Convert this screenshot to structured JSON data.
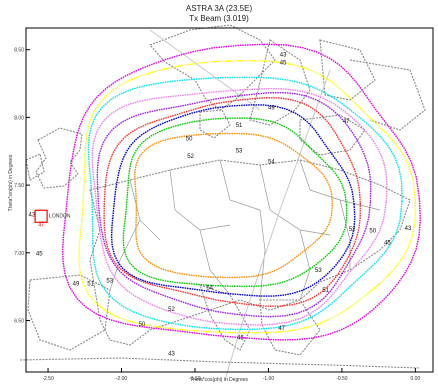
{
  "title": "ASTRA 3A (23.5E)",
  "subtitle": "Tx Beam (3.019)",
  "xlabel": "Theta*cos(phi) in Degrees",
  "ylabel": "Theta*sin(phi) in Degrees",
  "x_ticks": [
    {
      "label": "-2.50",
      "value": -2.5
    },
    {
      "label": "-2.00",
      "value": -2.0
    },
    {
      "label": "-1.50",
      "value": -1.5
    },
    {
      "label": "-1.00",
      "value": -1.0
    },
    {
      "label": "-0.50",
      "value": -0.5
    },
    {
      "label": "0.00",
      "value": 0.0
    }
  ],
  "y_ticks": [
    {
      "label": "8.50",
      "value": 8.5
    },
    {
      "label": "8.00",
      "value": 8.0
    },
    {
      "label": "7.50",
      "value": 7.5
    },
    {
      "label": "7.00",
      "value": 7.0
    },
    {
      "label": "6.50",
      "value": 6.5
    }
  ],
  "xlim": [
    -2.65,
    0.12
  ],
  "ylim": [
    6.12,
    8.66
  ],
  "legend": "none",
  "grid": false,
  "contour_levels": [
    {
      "level": "43",
      "color": "#e600e6"
    },
    {
      "level": "45",
      "color": "#ffff00"
    },
    {
      "level": "47",
      "color": "#00e5ee"
    },
    {
      "level": "49",
      "color": "#ee82ee"
    },
    {
      "level": "50",
      "color": "#a020f0"
    },
    {
      "level": "51",
      "color": "#ff3030"
    },
    {
      "level": "52",
      "color": "#0000dd"
    },
    {
      "level": "53",
      "color": "#00cc00"
    },
    {
      "level": "54",
      "color": "#ff8c00"
    }
  ],
  "contour_labels": [
    {
      "text": "43",
      "x": -0.9,
      "y": 8.45
    },
    {
      "text": "45",
      "x": -0.9,
      "y": 8.39
    },
    {
      "text": "49",
      "x": -0.98,
      "y": 8.06
    },
    {
      "text": "47",
      "x": -0.47,
      "y": 7.96
    },
    {
      "text": "50",
      "x": -1.54,
      "y": 7.83
    },
    {
      "text": "51",
      "x": -1.2,
      "y": 7.93
    },
    {
      "text": "53",
      "x": -1.2,
      "y": 7.74
    },
    {
      "text": "52",
      "x": -1.53,
      "y": 7.7
    },
    {
      "text": "54",
      "x": -0.98,
      "y": 7.66
    },
    {
      "text": "43",
      "x": -2.61,
      "y": 7.27
    },
    {
      "text": "45",
      "x": -2.56,
      "y": 6.98
    },
    {
      "text": "52",
      "x": -0.43,
      "y": 7.16
    },
    {
      "text": "50",
      "x": -0.29,
      "y": 7.15
    },
    {
      "text": "45",
      "x": -0.19,
      "y": 7.06
    },
    {
      "text": "43",
      "x": -0.05,
      "y": 7.17
    },
    {
      "text": "53",
      "x": -0.66,
      "y": 6.86
    },
    {
      "text": "51",
      "x": -0.61,
      "y": 6.71
    },
    {
      "text": "49",
      "x": -2.31,
      "y": 6.76
    },
    {
      "text": "51",
      "x": -2.21,
      "y": 6.76
    },
    {
      "text": "53",
      "x": -2.08,
      "y": 6.78
    },
    {
      "text": "54",
      "x": -1.4,
      "y": 6.73
    },
    {
      "text": "52",
      "x": -1.66,
      "y": 6.57
    },
    {
      "text": "50",
      "x": -1.86,
      "y": 6.46
    },
    {
      "text": "47",
      "x": -0.91,
      "y": 6.43
    },
    {
      "text": "45",
      "x": -1.19,
      "y": 6.36
    },
    {
      "text": "43",
      "x": -1.66,
      "y": 6.24
    }
  ],
  "marker": {
    "text": "LONDON",
    "x": -2.52,
    "y": 7.27,
    "box_label": "47",
    "color": "#ff0000"
  }
}
